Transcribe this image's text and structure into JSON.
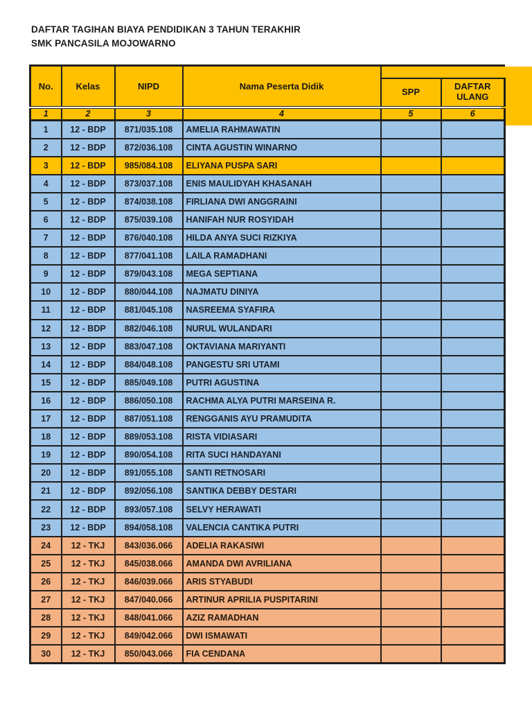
{
  "doc": {
    "title_line1": "DAFTAR TAGIHAN BIAYA PENDIDIKAN 3 TAHUN TERAKHIR",
    "title_line2": "SMK PANCASILA MOJOWARNO"
  },
  "colors": {
    "header_yellow": "#FFC000",
    "row_blue": "#9DC3E6",
    "row_orange": "#F4B183",
    "highlight_yellow": "#FFC000",
    "border_black": "#1f1f1f"
  },
  "table": {
    "columns": {
      "no": "No.",
      "kelas": "Kelas",
      "nipd": "NIPD",
      "nama": "Nama Peserta Didik",
      "spp": "SPP",
      "daftar_ulang": "DAFTAR ULANG"
    },
    "column_numbers": [
      "1",
      "2",
      "3",
      "4",
      "5",
      "6"
    ],
    "rows": [
      {
        "no": "1",
        "kelas": "12 - BDP",
        "nipd": "871/035.108",
        "nama": "AMELIA RAHMAWATIN",
        "spp": "",
        "daftar_ulang": "",
        "color": "blue"
      },
      {
        "no": "2",
        "kelas": "12 - BDP",
        "nipd": "872/036.108",
        "nama": "CINTA AGUSTIN WINARNO",
        "spp": "",
        "daftar_ulang": "",
        "color": "blue"
      },
      {
        "no": "3",
        "kelas": "12 - BDP",
        "nipd": "985/084.108",
        "nama": "ELIYANA PUSPA SARI",
        "spp": "",
        "daftar_ulang": "",
        "color": "yellow"
      },
      {
        "no": "4",
        "kelas": "12 - BDP",
        "nipd": "873/037.108",
        "nama": "ENIS MAULIDYAH KHASANAH",
        "spp": "",
        "daftar_ulang": "",
        "color": "blue"
      },
      {
        "no": "5",
        "kelas": "12 - BDP",
        "nipd": "874/038.108",
        "nama": "FIRLIANA DWI ANGGRAINI",
        "spp": "",
        "daftar_ulang": "",
        "color": "blue"
      },
      {
        "no": "6",
        "kelas": "12 - BDP",
        "nipd": "875/039.108",
        "nama": "HANIFAH NUR ROSYIDAH",
        "spp": "",
        "daftar_ulang": "",
        "color": "blue"
      },
      {
        "no": "7",
        "kelas": "12 - BDP",
        "nipd": "876/040.108",
        "nama": "HILDA ANYA SUCI RIZKIYA",
        "spp": "",
        "daftar_ulang": "",
        "color": "blue"
      },
      {
        "no": "8",
        "kelas": "12 - BDP",
        "nipd": "877/041.108",
        "nama": "LAILA RAMADHANI",
        "spp": "",
        "daftar_ulang": "",
        "color": "blue"
      },
      {
        "no": "9",
        "kelas": "12 - BDP",
        "nipd": "879/043.108",
        "nama": "MEGA SEPTIANA",
        "spp": "",
        "daftar_ulang": "",
        "color": "blue"
      },
      {
        "no": "10",
        "kelas": "12 - BDP",
        "nipd": "880/044.108",
        "nama": "NAJMATU DINIYA",
        "spp": "",
        "daftar_ulang": "",
        "color": "blue"
      },
      {
        "no": "11",
        "kelas": "12 - BDP",
        "nipd": "881/045.108",
        "nama": "NASREEMA SYAFIRA",
        "spp": "",
        "daftar_ulang": "",
        "color": "blue"
      },
      {
        "no": "12",
        "kelas": "12 - BDP",
        "nipd": "882/046.108",
        "nama": "NURUL WULANDARI",
        "spp": "",
        "daftar_ulang": "",
        "color": "blue"
      },
      {
        "no": "13",
        "kelas": "12 - BDP",
        "nipd": "883/047.108",
        "nama": "OKTAVIANA MARIYANTI",
        "spp": "",
        "daftar_ulang": "",
        "color": "blue"
      },
      {
        "no": "14",
        "kelas": "12 - BDP",
        "nipd": "884/048.108",
        "nama": "PANGESTU SRI UTAMI",
        "spp": "",
        "daftar_ulang": "",
        "color": "blue"
      },
      {
        "no": "15",
        "kelas": "12 - BDP",
        "nipd": "885/049.108",
        "nama": "PUTRI AGUSTINA",
        "spp": "",
        "daftar_ulang": "",
        "color": "blue"
      },
      {
        "no": "16",
        "kelas": "12 - BDP",
        "nipd": "886/050.108",
        "nama": "RACHMA ALYA PUTRI MARSEINA R.",
        "spp": "",
        "daftar_ulang": "",
        "color": "blue"
      },
      {
        "no": "17",
        "kelas": "12 - BDP",
        "nipd": "887/051.108",
        "nama": "RENGGANIS AYU PRAMUDITA",
        "spp": "",
        "daftar_ulang": "",
        "color": "blue"
      },
      {
        "no": "18",
        "kelas": "12 - BDP",
        "nipd": "889/053.108",
        "nama": "RISTA VIDIASARI",
        "spp": "",
        "daftar_ulang": "",
        "color": "blue"
      },
      {
        "no": "19",
        "kelas": "12 - BDP",
        "nipd": "890/054.108",
        "nama": "RITA SUCI HANDAYANI",
        "spp": "",
        "daftar_ulang": "",
        "color": "blue"
      },
      {
        "no": "20",
        "kelas": "12 - BDP",
        "nipd": "891/055.108",
        "nama": "SANTI RETNOSARI",
        "spp": "",
        "daftar_ulang": "",
        "color": "blue"
      },
      {
        "no": "21",
        "kelas": "12 - BDP",
        "nipd": "892/056.108",
        "nama": "SANTIKA DEBBY DESTARI",
        "spp": "",
        "daftar_ulang": "",
        "color": "blue"
      },
      {
        "no": "22",
        "kelas": "12 - BDP",
        "nipd": "893/057.108",
        "nama": "SELVY HERAWATI",
        "spp": "",
        "daftar_ulang": "",
        "color": "blue"
      },
      {
        "no": "23",
        "kelas": "12 - BDP",
        "nipd": "894/058.108",
        "nama": "VALENCIA CANTIKA PUTRI",
        "spp": "",
        "daftar_ulang": "",
        "color": "blue"
      },
      {
        "no": "24",
        "kelas": "12 - TKJ",
        "nipd": "843/036.066",
        "nama": "ADELIA RAKASIWI",
        "spp": "",
        "daftar_ulang": "",
        "color": "orange"
      },
      {
        "no": "25",
        "kelas": "12 - TKJ",
        "nipd": "845/038.066",
        "nama": "AMANDA DWI AVRILIANA",
        "spp": "",
        "daftar_ulang": "",
        "color": "orange"
      },
      {
        "no": "26",
        "kelas": "12 - TKJ",
        "nipd": "846/039.066",
        "nama": "ARIS STYABUDI",
        "spp": "",
        "daftar_ulang": "",
        "color": "orange"
      },
      {
        "no": "27",
        "kelas": "12 - TKJ",
        "nipd": "847/040.066",
        "nama": "ARTINUR APRILIA PUSPITARINI",
        "spp": "",
        "daftar_ulang": "",
        "color": "orange"
      },
      {
        "no": "28",
        "kelas": "12 - TKJ",
        "nipd": "848/041.066",
        "nama": "AZIZ RAMADHAN",
        "spp": "",
        "daftar_ulang": "",
        "color": "orange"
      },
      {
        "no": "29",
        "kelas": "12 - TKJ",
        "nipd": "849/042.066",
        "nama": "DWI ISMAWATI",
        "spp": "",
        "daftar_ulang": "",
        "color": "orange"
      },
      {
        "no": "30",
        "kelas": "12 - TKJ",
        "nipd": "850/043.066",
        "nama": "FIA CENDANA",
        "spp": "",
        "daftar_ulang": "",
        "color": "orange"
      }
    ]
  }
}
